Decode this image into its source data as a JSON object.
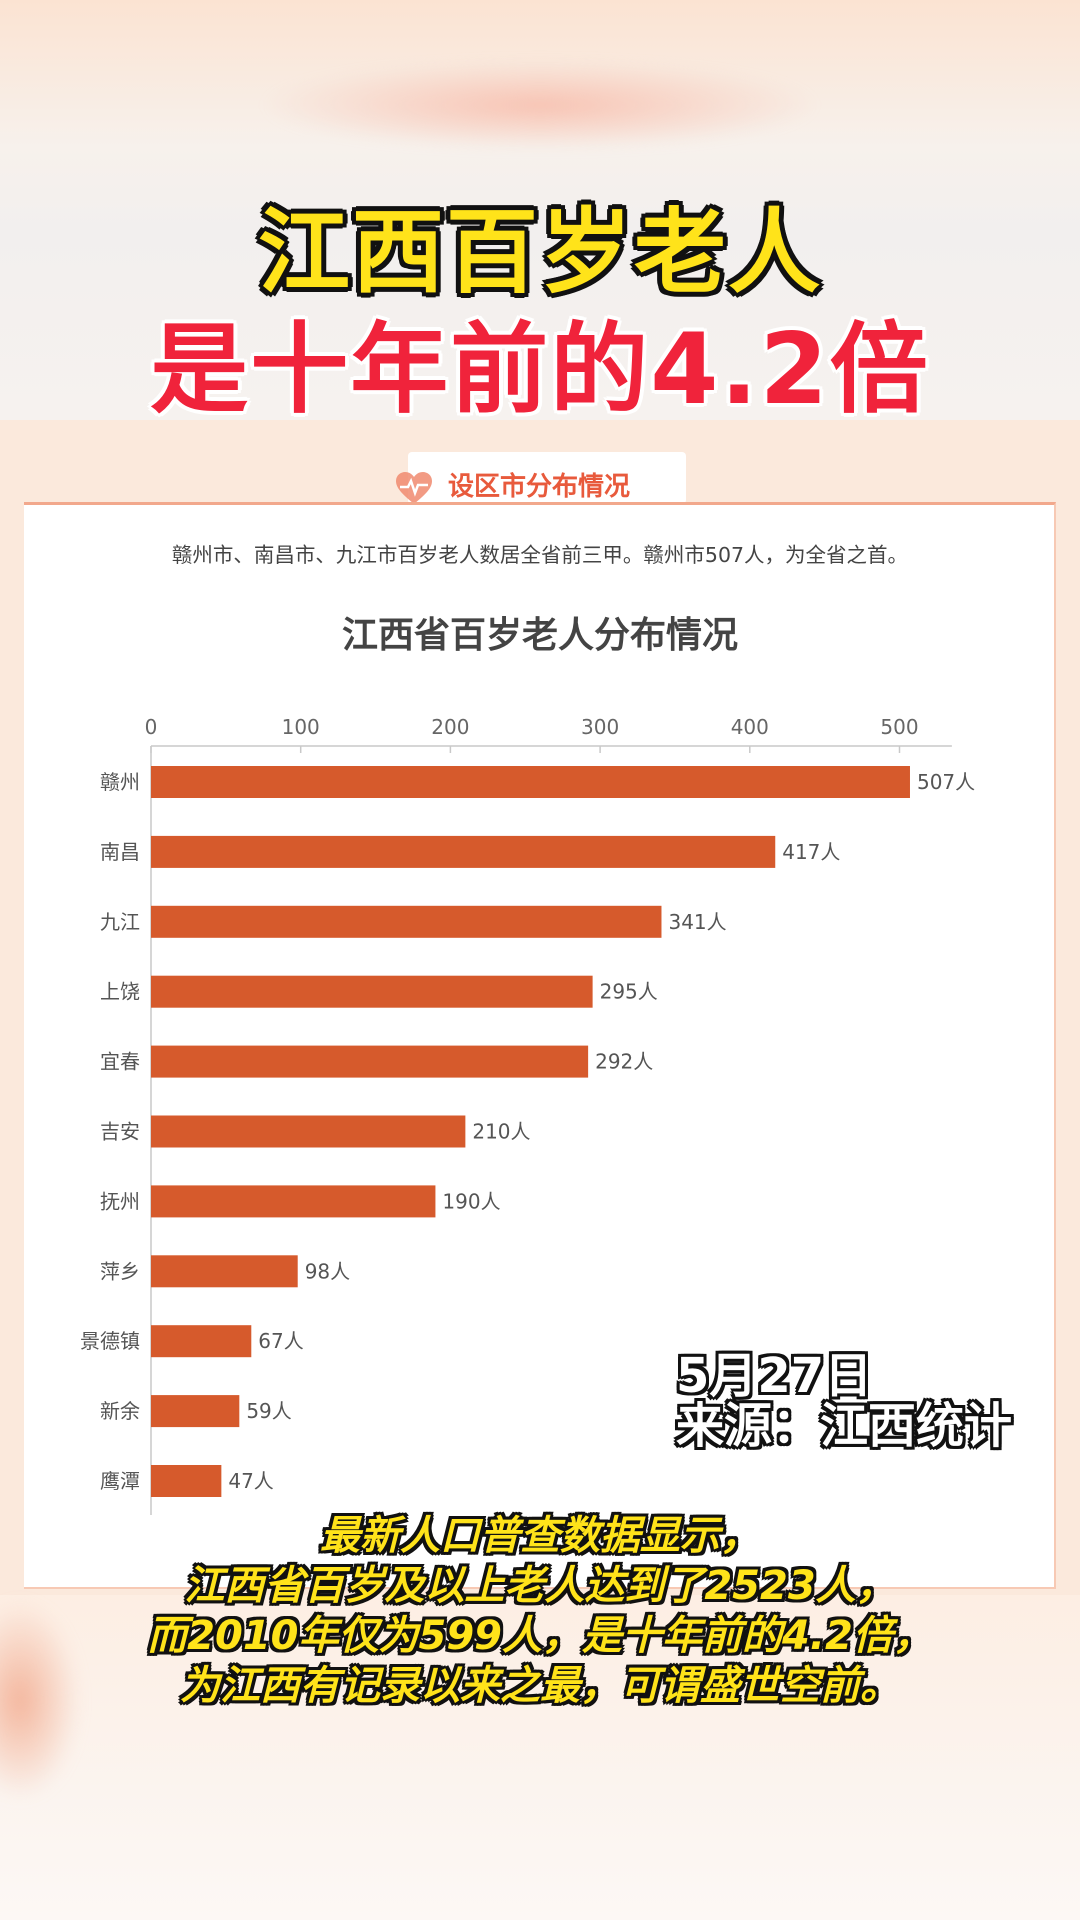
{
  "headline": {
    "line1": "江西百岁老人",
    "line2": "是十年前的4.2倍"
  },
  "section_title": "设区市分布情况",
  "summary": "赣州市、南昌市、九江市百岁老人数居全省前三甲。赣州市507人，为全省之首。",
  "stamp": {
    "date": "5月27日",
    "source": "来源：江西统计"
  },
  "caption": [
    "最新人口普查数据显示，",
    "江西省百岁及以上老人达到了2523人，",
    "而2010年仅为599人，是十年前的4.2倍，",
    "为江西有记录以来之最，可谓盛世空前。"
  ],
  "colors": {
    "bar": "#d65a2c",
    "headline_yellow": "#ffe31a",
    "headline_red": "#f0233b",
    "section_accent": "#e85a3c"
  },
  "chart_data": {
    "type": "bar",
    "orientation": "horizontal",
    "title": "江西省百岁老人分布情况",
    "categories": [
      "赣州",
      "南昌",
      "九江",
      "上饶",
      "宜春",
      "吉安",
      "抚州",
      "萍乡",
      "景德镇",
      "新余",
      "鹰潭"
    ],
    "values": [
      507,
      417,
      341,
      295,
      292,
      210,
      190,
      98,
      67,
      59,
      47
    ],
    "value_labels": [
      "507人",
      "417人",
      "341人",
      "295人",
      "292人",
      "210人",
      "190人",
      "98人",
      "67人",
      "59人",
      "47人"
    ],
    "x_ticks": [
      0,
      100,
      200,
      300,
      400,
      500
    ],
    "xlim": [
      0,
      535
    ],
    "axis_position": "top",
    "grid": false,
    "legend": "none"
  }
}
